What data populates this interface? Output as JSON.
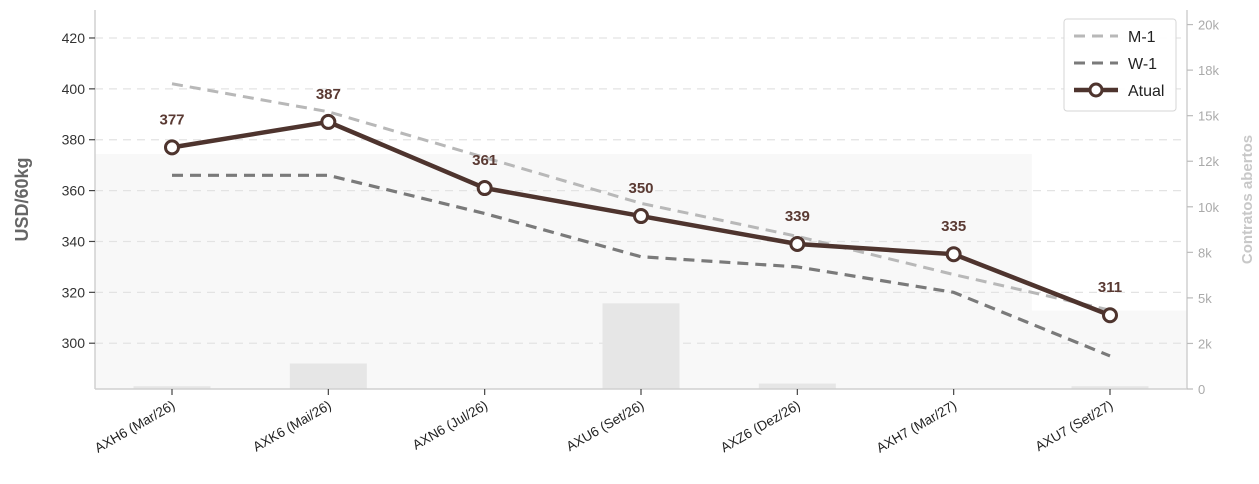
{
  "chart_data": {
    "type": "line",
    "categories": [
      "AXH6 (Mar/26)",
      "AXK6 (Mai/26)",
      "AXN6 (Jul/26)",
      "AXU6 (Set/26)",
      "AXZ6 (Dez/26)",
      "AXH7 (Mar/27)",
      "AXU7 (Set/27)"
    ],
    "series": [
      {
        "name": "M-1",
        "values": [
          402,
          391,
          373,
          355,
          342,
          327,
          313
        ],
        "color": "#b8b8b8",
        "style": "dashed"
      },
      {
        "name": "W-1",
        "values": [
          366,
          366,
          351,
          334,
          330,
          320,
          295
        ],
        "color": "#7a7a7a",
        "style": "dashed"
      },
      {
        "name": "Atual",
        "values": [
          377,
          387,
          361,
          350,
          339,
          335,
          311
        ],
        "color": "#4e342e",
        "style": "solid-markers"
      }
    ],
    "data_labels": [
      "377",
      "387",
      "361",
      "350",
      "339",
      "335",
      "311"
    ],
    "open_interest": {
      "values": [
        150,
        1400,
        0,
        4700,
        300,
        0,
        150
      ],
      "area_values": [
        12900,
        12900,
        12900,
        12900,
        12900,
        12900,
        4300
      ],
      "bar_color": "#e6e6e6",
      "area_color": "#f8f8f8"
    },
    "ylabel": "USD/60kg",
    "y2label": "Contratos abertos",
    "ylim": [
      282,
      431
    ],
    "y2lim": [
      0,
      20800
    ],
    "yticks": [
      300,
      320,
      340,
      360,
      380,
      400,
      420
    ],
    "y2ticks": [
      0,
      2500,
      5000,
      7500,
      10000,
      12500,
      15000,
      17500,
      20000
    ],
    "y2tick_labels": [
      "0",
      "2k",
      "5k",
      "8k",
      "10k",
      "12k",
      "15k",
      "18k",
      "20k"
    ],
    "grid": true,
    "legend_position": "top-right"
  }
}
